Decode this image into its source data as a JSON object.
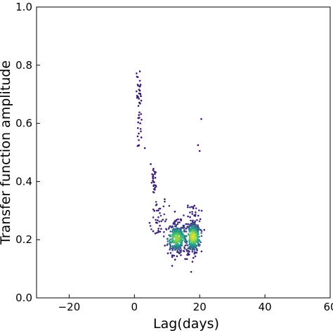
{
  "chart_data": {
    "type": "scatter",
    "title": "",
    "xlabel": "Lag(days)",
    "ylabel": "Transfer function amplitude",
    "xlim": [
      -30,
      60
    ],
    "ylim": [
      0.0,
      1.0
    ],
    "xticks": [
      -20,
      0,
      20,
      40,
      60
    ],
    "xtick_labels": [
      "−20",
      "0",
      "20",
      "40",
      "60"
    ],
    "yticks": [
      0.0,
      0.2,
      0.4,
      0.6,
      0.8,
      1.0
    ],
    "ytick_labels": [
      "0.0",
      "0.2",
      "0.4",
      "0.6",
      "0.8",
      "1.0"
    ],
    "grid": false,
    "legend": "none",
    "colormap": [
      "#3b0f70",
      "#414487",
      "#2a788e",
      "#22a884",
      "#7ad151",
      "#fde725"
    ],
    "clusters": [
      {
        "x_center": 1.5,
        "x_spread": 0.7,
        "y_min": 0.52,
        "y_max": 0.78,
        "count": 45,
        "density": 0.05
      },
      {
        "x_center": 6.0,
        "x_spread": 0.6,
        "y_min": 0.36,
        "y_max": 0.45,
        "count": 28,
        "density": 0.1
      },
      {
        "x_center": 7.5,
        "x_spread": 2.5,
        "y_min": 0.22,
        "y_max": 0.34,
        "count": 40,
        "density": 0.15
      },
      {
        "x_center": 13.0,
        "x_spread": 2.3,
        "y_mean": 0.205,
        "y_spread": 0.028,
        "count": 320,
        "density": 0.85
      },
      {
        "x_center": 18.0,
        "x_spread": 1.8,
        "y_mean": 0.21,
        "y_spread": 0.03,
        "count": 320,
        "density": 0.95
      },
      {
        "x_center": 17.5,
        "x_spread": 2.2,
        "y_min": 0.23,
        "y_max": 0.32,
        "count": 40,
        "density": 0.2
      }
    ],
    "outliers": [
      {
        "x": 20.5,
        "y": 0.615
      },
      {
        "x": 19.5,
        "y": 0.525
      },
      {
        "x": 20.0,
        "y": 0.505
      },
      {
        "x": 3.2,
        "y": 0.515
      },
      {
        "x": 5.0,
        "y": 0.46
      }
    ]
  }
}
